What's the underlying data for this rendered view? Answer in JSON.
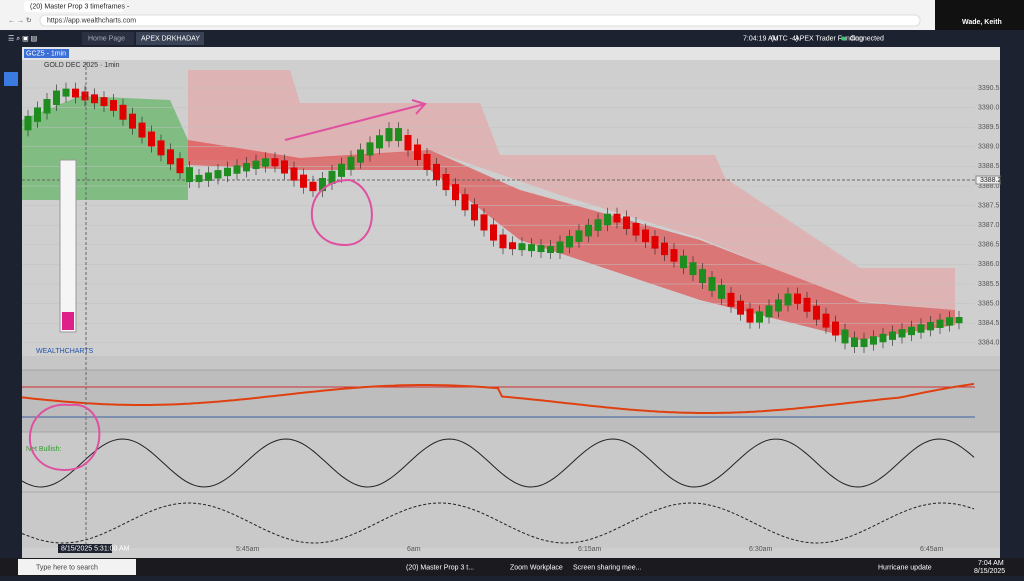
{
  "browser": {
    "tab_title": "(20) Master Prop 3 timeframes -",
    "url": "https://app.wealthcharts.com"
  },
  "app": {
    "tabs": [
      "Home Page",
      "APEX DRKHADAY"
    ],
    "clock": "7:04:19 AM",
    "timezone": "(UTC -4)",
    "broker": "APEX Trader Funding",
    "status": "Connected"
  },
  "user": "Wade, Keith",
  "chart": {
    "symbol": "GCZ5 - 1min",
    "title": "GOLD DEC 2025 · 1min",
    "price_labels": [
      "3390.5",
      "3390.0",
      "3389.5",
      "3389.0",
      "3388.5",
      "3388.0",
      "3387.5",
      "3387.0",
      "3386.5",
      "3386.0",
      "3385.5",
      "3385.0",
      "3384.5",
      "3384.0"
    ],
    "current_price": "3388.2",
    "time_labels": [
      "5:45am",
      "6am",
      "6:15am",
      "6:30am",
      "6:45am"
    ],
    "cursor_time": "8/15/2025 5:31:00 AM",
    "indicator_label": "Net Bullish:",
    "brand": "WEALTHCHARTS"
  },
  "taskbar": {
    "search": "Type here to search",
    "apps": [
      "(20) Master Prop 3 t...",
      "Zoom Workplace",
      "Screen sharing mee..."
    ],
    "weather": "Hurricane update",
    "time": "7:04 AM",
    "date": "8/15/2025"
  }
}
